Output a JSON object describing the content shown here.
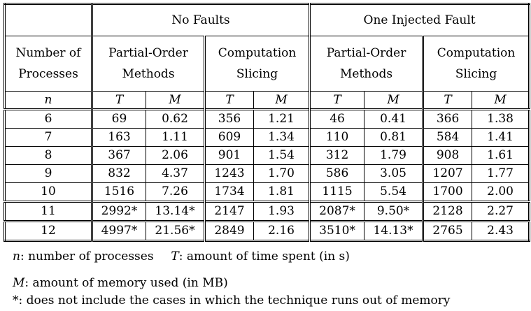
{
  "header": {
    "group_no_faults": "No Faults",
    "group_one_fault": "One Injected Fault",
    "number_of": "Number of",
    "processes": "Processes",
    "partial_order_1": "Partial-Order",
    "partial_order_2": "Methods",
    "slicing_1": "Computation",
    "slicing_2": "Slicing",
    "sym_n": "n",
    "sym_T": "T",
    "sym_M": "M"
  },
  "rows": [
    [
      "6",
      "69",
      "0.62",
      "356",
      "1.21",
      "46",
      "0.41",
      "366",
      "1.38"
    ],
    [
      "7",
      "163",
      "1.11",
      "609",
      "1.34",
      "110",
      "0.81",
      "584",
      "1.41"
    ],
    [
      "8",
      "367",
      "2.06",
      "901",
      "1.54",
      "312",
      "1.79",
      "908",
      "1.61"
    ],
    [
      "9",
      "832",
      "4.37",
      "1243",
      "1.70",
      "586",
      "3.05",
      "1207",
      "1.77"
    ],
    [
      "10",
      "1516",
      "7.26",
      "1734",
      "1.81",
      "1115",
      "5.54",
      "1700",
      "2.00"
    ],
    [
      "11",
      "2992*",
      "13.14*",
      "2147",
      "1.93",
      "2087*",
      "9.50*",
      "2128",
      "2.27"
    ],
    [
      "12",
      "4997*",
      "21.56*",
      "2849",
      "2.16",
      "3510*",
      "14.13*",
      "2765",
      "2.43"
    ]
  ],
  "legend": {
    "n_sym": "n",
    "n_text": ": number of processes",
    "T_sym": "T",
    "T_text": ": amount of time spent (in s)",
    "M_sym": "M",
    "M_text": ": amount of memory used (in MB)",
    "star_text": "*: does not include the cases in which the technique runs out of memory"
  }
}
